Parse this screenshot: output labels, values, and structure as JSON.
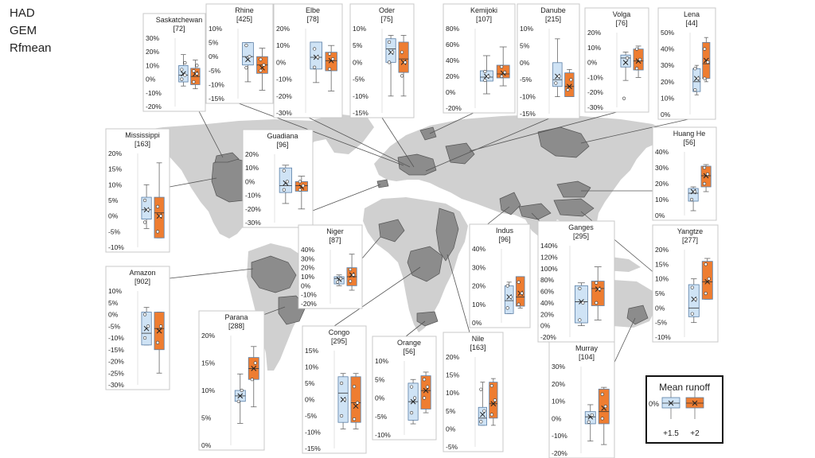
{
  "legend_lines": [
    "HAD",
    "GEM",
    "Rfmean"
  ],
  "colors": {
    "blue": "#cfe3f5",
    "orange": "#ee7d31",
    "land": "#cfcfcf",
    "basin": "#8c8c8c"
  },
  "chart_data": [
    {
      "type": "box",
      "title": "Saskatchewan",
      "n": "[72]",
      "ticks": [
        "30%",
        "20%",
        "10%",
        "0%",
        "-10%",
        "-20%"
      ],
      "ylim": [
        -20,
        30
      ],
      "series": [
        {
          "name": "+1.5",
          "box": {
            "min": -5,
            "q1": -2,
            "median": 3,
            "q3": 10,
            "max": 18,
            "mean": 4
          },
          "points": [
            0,
            3,
            7,
            12
          ]
        },
        {
          "name": "+2",
          "box": {
            "min": -7,
            "q1": -4,
            "median": 2,
            "q3": 8,
            "max": 14,
            "mean": 4
          },
          "points": [
            -2,
            4,
            6,
            10
          ]
        }
      ]
    },
    {
      "type": "box",
      "title": "Rhine",
      "n": "[425]",
      "ticks": [
        "10%",
        "5%",
        "0%",
        "-5%",
        "-10%",
        "-15%"
      ],
      "ylim": [
        -15,
        10
      ],
      "series": [
        {
          "name": "+1.5",
          "box": {
            "min": -9,
            "q1": -3,
            "median": 0,
            "q3": 5,
            "max": 5,
            "mean": -1
          },
          "points": [
            -4,
            0,
            4
          ]
        },
        {
          "name": "+2",
          "box": {
            "min": -12,
            "q1": -6,
            "median": -3,
            "q3": 0,
            "max": 3,
            "mean": -4
          },
          "points": [
            -5,
            -3,
            -1
          ]
        }
      ]
    },
    {
      "type": "box",
      "title": "Elbe",
      "n": "[78]",
      "ticks": [
        "20%",
        "10%",
        "0%",
        "-10%",
        "-20%",
        "-30%"
      ],
      "ylim": [
        -30,
        20
      ],
      "series": [
        {
          "name": "+1.5",
          "box": {
            "min": -12,
            "q1": -4,
            "median": 3,
            "q3": 12,
            "max": 12,
            "mean": 3
          },
          "points": [
            -3,
            3,
            8
          ]
        },
        {
          "name": "+2",
          "box": {
            "min": -17,
            "q1": -5,
            "median": 1,
            "q3": 6,
            "max": 10,
            "mean": 1
          },
          "points": [
            -4,
            2,
            5
          ]
        }
      ]
    },
    {
      "type": "box",
      "title": "Oder",
      "n": "[75]",
      "ticks": [
        "10%",
        "5%",
        "0%",
        "-5%",
        "-10%",
        "-15%"
      ],
      "ylim": [
        -15,
        10
      ],
      "series": [
        {
          "name": "+1.5",
          "box": {
            "min": -10,
            "q1": 0,
            "median": 4,
            "q3": 7,
            "max": 8,
            "mean": 3
          },
          "points": [
            0,
            3,
            6
          ]
        },
        {
          "name": "+2",
          "box": {
            "min": -10,
            "q1": -3,
            "median": 1,
            "q3": 6,
            "max": 8,
            "mean": 0
          },
          "points": [
            -4,
            0,
            3
          ]
        }
      ]
    },
    {
      "type": "box",
      "title": "Kemijoki",
      "n": "[107]",
      "ticks": [
        "80%",
        "60%",
        "40%",
        "20%",
        "0%",
        "-20%"
      ],
      "ylim": [
        -20,
        80
      ],
      "series": [
        {
          "name": "+1.5",
          "box": {
            "min": -2,
            "q1": 14,
            "median": 19,
            "q3": 27,
            "max": 46,
            "mean": 20
          },
          "points": [
            15,
            20,
            26
          ]
        },
        {
          "name": "+2",
          "box": {
            "min": 8,
            "q1": 18,
            "median": 23,
            "q3": 34,
            "max": 57,
            "mean": 24
          },
          "points": [
            20,
            25,
            32
          ]
        }
      ]
    },
    {
      "type": "box",
      "title": "Danube",
      "n": "[215]",
      "ticks": [
        "10%",
        "5%",
        "0%",
        "-5%",
        "-10%",
        "-15%"
      ],
      "ylim": [
        -15,
        10
      ],
      "series": [
        {
          "name": "+1.5",
          "box": {
            "min": -10,
            "q1": -7,
            "median": -5,
            "q3": 0,
            "max": 7,
            "mean": -4
          },
          "points": [
            -6,
            -4
          ]
        },
        {
          "name": "+2",
          "box": {
            "min": -10,
            "q1": -10,
            "median": -7,
            "q3": -3,
            "max": -2,
            "mean": -7
          },
          "points": [
            -8,
            -5
          ]
        }
      ]
    },
    {
      "type": "box",
      "title": "Volga",
      "n": "[76]",
      "ticks": [
        "20%",
        "10%",
        "0%",
        "-10%",
        "-20%",
        "-30%"
      ],
      "ylim": [
        -30,
        20
      ],
      "series": [
        {
          "name": "+1.5",
          "box": {
            "min": -12,
            "q1": -3,
            "median": 3,
            "q3": 5,
            "max": 7,
            "mean": 0
          },
          "points": [
            -24,
            3
          ]
        },
        {
          "name": "+2",
          "box": {
            "min": -10,
            "q1": -5,
            "median": 1,
            "q3": 9,
            "max": 11,
            "mean": 1
          },
          "points": [
            -4,
            2,
            9
          ]
        }
      ]
    },
    {
      "type": "box",
      "title": "Lena",
      "n": "[44]",
      "ticks": [
        "50%",
        "40%",
        "30%",
        "20%",
        "10%",
        "0%"
      ],
      "ylim": [
        0,
        50
      ],
      "series": [
        {
          "name": "+1.5",
          "box": {
            "min": 12,
            "q1": 14,
            "median": 20,
            "q3": 28,
            "max": 30,
            "mean": 22
          },
          "points": [
            15,
            22,
            28
          ]
        },
        {
          "name": "+2",
          "box": {
            "min": 20,
            "q1": 22,
            "median": 31,
            "q3": 44,
            "max": 47,
            "mean": 33
          },
          "points": [
            22,
            32,
            40
          ]
        }
      ]
    },
    {
      "type": "box",
      "title": "Mississippi",
      "n": "[163]",
      "ticks": [
        "20%",
        "15%",
        "10%",
        "5%",
        "0%",
        "-5%",
        "-10%"
      ],
      "ylim": [
        -10,
        20
      ],
      "series": [
        {
          "name": "+1.5",
          "box": {
            "min": -4,
            "q1": -1,
            "median": 2,
            "q3": 6,
            "max": 10,
            "mean": 2
          },
          "points": [
            -2,
            2,
            5
          ]
        },
        {
          "name": "+2",
          "box": {
            "min": -7,
            "q1": -7,
            "median": 1,
            "q3": 6,
            "max": 17,
            "mean": 0
          },
          "points": [
            -5,
            0,
            3
          ]
        }
      ]
    },
    {
      "type": "box",
      "title": "Guadiana",
      "n": "[96]",
      "ticks": [
        "20%",
        "10%",
        "0%",
        "-10%",
        "-20%",
        "-30%"
      ],
      "ylim": [
        -30,
        20
      ],
      "series": [
        {
          "name": "+1.5",
          "box": {
            "min": -16,
            "q1": -8,
            "median": -3,
            "q3": 10,
            "max": 12,
            "mean": -1
          },
          "points": [
            -6,
            0,
            8
          ]
        },
        {
          "name": "+2",
          "box": {
            "min": -20,
            "q1": -7,
            "median": -3,
            "q3": 0,
            "max": 4,
            "mean": -4
          },
          "points": [
            -6,
            -3,
            0
          ]
        }
      ]
    },
    {
      "type": "box",
      "title": "Huang He",
      "n": "[56]",
      "ticks": [
        "40%",
        "30%",
        "20%",
        "10%",
        "0%"
      ],
      "ylim": [
        0,
        40
      ],
      "series": [
        {
          "name": "+1.5",
          "box": {
            "min": 3,
            "q1": 9,
            "median": 14,
            "q3": 17,
            "max": 18,
            "mean": 15
          },
          "points": [
            10,
            15
          ]
        },
        {
          "name": "+2",
          "box": {
            "min": 15,
            "q1": 18,
            "median": 25,
            "q3": 31,
            "max": 32,
            "mean": 25
          },
          "points": [
            20,
            26,
            30
          ]
        }
      ]
    },
    {
      "type": "box",
      "title": "Amazon",
      "n": "[902]",
      "ticks": [
        "10%",
        "5%",
        "0%",
        "-5%",
        "-10%",
        "-15%",
        "-20%",
        "-25%",
        "-30%"
      ],
      "ylim": [
        -30,
        10
      ],
      "series": [
        {
          "name": "+1.5",
          "box": {
            "min": -13,
            "q1": -13,
            "median": -8,
            "q3": 1,
            "max": 3,
            "mean": -6
          },
          "points": [
            -10,
            -5,
            0
          ]
        },
        {
          "name": "+2",
          "box": {
            "min": -25,
            "q1": -15,
            "median": -6,
            "q3": 1,
            "max": 1,
            "mean": -7
          },
          "points": [
            -12,
            -5
          ]
        }
      ]
    },
    {
      "type": "box",
      "title": "Niger",
      "n": "[87]",
      "ticks": [
        "40%",
        "30%",
        "20%",
        "10%",
        "0%",
        "-10%",
        "-20%"
      ],
      "ylim": [
        -20,
        40
      ],
      "series": [
        {
          "name": "+1.5",
          "box": {
            "min": 0,
            "q1": 2,
            "median": 8,
            "q3": 10,
            "max": 12,
            "mean": 7
          },
          "points": [
            4,
            8
          ]
        },
        {
          "name": "+2",
          "box": {
            "min": -5,
            "q1": 0,
            "median": 10,
            "q3": 20,
            "max": 35,
            "mean": 12
          },
          "points": [
            5,
            12,
            18
          ]
        }
      ]
    },
    {
      "type": "box",
      "title": "Indus",
      "n": "[96]",
      "ticks": [
        "40%",
        "30%",
        "20%",
        "10%",
        "0%"
      ],
      "ylim": [
        0,
        40
      ],
      "series": [
        {
          "name": "+1.5",
          "box": {
            "min": 5,
            "q1": 5,
            "median": 12,
            "q3": 20,
            "max": 22,
            "mean": 14
          },
          "points": [
            8,
            14,
            20
          ]
        },
        {
          "name": "+2",
          "box": {
            "min": 8,
            "q1": 9,
            "median": 14,
            "q3": 25,
            "max": 25,
            "mean": 16
          },
          "points": [
            10,
            16,
            22
          ]
        }
      ]
    },
    {
      "type": "box",
      "title": "Ganges",
      "n": "[295]",
      "ticks": [
        "140%",
        "120%",
        "100%",
        "80%",
        "60%",
        "40%",
        "20%",
        "0%",
        "-20%"
      ],
      "ylim": [
        -20,
        140
      ],
      "series": [
        {
          "name": "+1.5",
          "box": {
            "min": 0,
            "q1": 5,
            "median": 42,
            "q3": 70,
            "max": 75,
            "mean": 42
          },
          "points": [
            10,
            40,
            65
          ]
        },
        {
          "name": "+2",
          "box": {
            "min": 10,
            "q1": 35,
            "median": 65,
            "q3": 78,
            "max": 103,
            "mean": 64
          },
          "points": [
            40,
            64,
            75
          ]
        }
      ]
    },
    {
      "type": "box",
      "title": "Yangtze",
      "n": "[277]",
      "ticks": [
        "20%",
        "15%",
        "10%",
        "5%",
        "0%",
        "-5%",
        "-10%"
      ],
      "ylim": [
        -10,
        20
      ],
      "series": [
        {
          "name": "+1.5",
          "box": {
            "min": -5,
            "q1": -3,
            "median": 0,
            "q3": 8,
            "max": 10,
            "mean": 3
          },
          "points": [
            -2,
            3,
            7
          ]
        },
        {
          "name": "+2",
          "box": {
            "min": 3,
            "q1": 3,
            "median": 9,
            "q3": 16,
            "max": 17,
            "mean": 9
          },
          "points": [
            5,
            10,
            15
          ]
        }
      ]
    },
    {
      "type": "box",
      "title": "Parana",
      "n": "[288]",
      "ticks": [
        "20%",
        "15%",
        "10%",
        "5%",
        "0%"
      ],
      "ylim": [
        0,
        20
      ],
      "series": [
        {
          "name": "+1.5",
          "box": {
            "min": 4,
            "q1": 8,
            "median": 9,
            "q3": 10,
            "max": 13,
            "mean": 9
          },
          "points": [
            8,
            10
          ]
        },
        {
          "name": "+2",
          "box": {
            "min": 7,
            "q1": 12,
            "median": 14,
            "q3": 16,
            "max": 18,
            "mean": 14
          },
          "points": [
            12,
            15
          ]
        }
      ]
    },
    {
      "type": "box",
      "title": "Congo",
      "n": "[295]",
      "ticks": [
        "15%",
        "10%",
        "5%",
        "0%",
        "-5%",
        "-10%",
        "-15%"
      ],
      "ylim": [
        -15,
        15
      ],
      "series": [
        {
          "name": "+1.5",
          "box": {
            "min": -9,
            "q1": -7,
            "median": 2,
            "q3": 7,
            "max": 8,
            "mean": 0
          },
          "points": [
            -5,
            0,
            5
          ]
        },
        {
          "name": "+2",
          "box": {
            "min": -9,
            "q1": -7,
            "median": -1,
            "q3": 7,
            "max": 8,
            "mean": -2
          },
          "points": [
            -6,
            -1,
            4
          ]
        }
      ]
    },
    {
      "type": "box",
      "title": "Orange",
      "n": "[56]",
      "ticks": [
        "10%",
        "5%",
        "0%",
        "-5%",
        "-10%"
      ],
      "ylim": [
        -10,
        10
      ],
      "series": [
        {
          "name": "+1.5",
          "box": {
            "min": -7,
            "q1": -6,
            "median": -1,
            "q3": 4,
            "max": 5,
            "mean": -1
          },
          "points": [
            -4,
            0,
            3
          ]
        },
        {
          "name": "+2",
          "box": {
            "min": -4,
            "q1": -3,
            "median": 2,
            "q3": 6,
            "max": 7,
            "mean": 2
          },
          "points": [
            0,
            3,
            5
          ]
        }
      ]
    },
    {
      "type": "box",
      "title": "Nile",
      "n": "[163]",
      "ticks": [
        "20%",
        "15%",
        "10%",
        "5%",
        "0%",
        "-5%"
      ],
      "ylim": [
        -5,
        20
      ],
      "series": [
        {
          "name": "+1.5",
          "box": {
            "min": 1,
            "q1": 1,
            "median": 3,
            "q3": 6,
            "max": 13,
            "mean": 4
          },
          "points": [
            2,
            5,
            11
          ]
        },
        {
          "name": "+2",
          "box": {
            "min": 1,
            "q1": 3,
            "median": 7,
            "q3": 13,
            "max": 14,
            "mean": 7
          },
          "points": [
            4,
            8,
            12
          ]
        }
      ]
    },
    {
      "type": "box",
      "title": "Murray",
      "n": "[104]",
      "ticks": [
        "30%",
        "20%",
        "10%",
        "0%",
        "-10%",
        "-20%"
      ],
      "ylim": [
        -20,
        30
      ],
      "series": [
        {
          "name": "+1.5",
          "box": {
            "min": -13,
            "q1": -3,
            "median": 1,
            "q3": 4,
            "max": 8,
            "mean": 1
          },
          "points": [
            -2,
            2
          ]
        },
        {
          "name": "+2",
          "box": {
            "min": -15,
            "q1": -3,
            "median": 4,
            "q3": 17,
            "max": 18,
            "mean": 6
          },
          "points": [
            0,
            7,
            14
          ]
        }
      ]
    }
  ],
  "mean_runoff": {
    "title": "Mean runoff",
    "tick": "0%",
    "labels": [
      "+1.5",
      "+2"
    ]
  }
}
